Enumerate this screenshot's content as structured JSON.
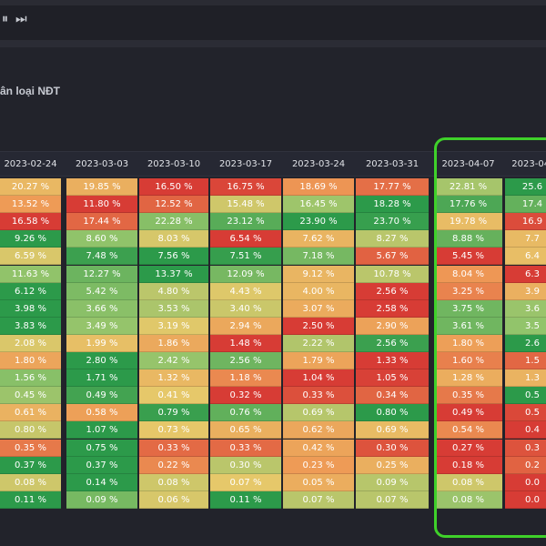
{
  "toolbar": {
    "controls": [
      {
        "icon": "pause-icon",
        "glyph": "⏸",
        "name": "pause-button"
      },
      {
        "icon": "skip-forward-icon",
        "glyph": "⏭",
        "name": "next-button"
      }
    ]
  },
  "section": {
    "title": "ân loại NĐT"
  },
  "table": {
    "columns": [
      "2023-02-24",
      "2023-03-03",
      "2023-03-10",
      "2023-03-17",
      "2023-03-24",
      "2023-03-31",
      "2023-04-07",
      "2023-04-"
    ],
    "rows": [
      [
        "20.27 %",
        "19.85 %",
        "16.50 %",
        "16.75 %",
        "18.69 %",
        "17.77 %",
        "22.81 %",
        "25.6"
      ],
      [
        "13.52 %",
        "11.80 %",
        "12.52 %",
        "15.48 %",
        "16.45 %",
        "18.28 %",
        "17.76 %",
        "17.4"
      ],
      [
        "16.58 %",
        "17.44 %",
        "22.28 %",
        "23.12 %",
        "23.90 %",
        "23.70 %",
        "19.78 %",
        "16.9"
      ],
      [
        "9.26 %",
        "8.60 %",
        "8.03 %",
        "6.54 %",
        "7.62 %",
        "8.27 %",
        "8.88 %",
        "7.7"
      ],
      [
        "6.59 %",
        "7.48 %",
        "7.56 %",
        "7.51 %",
        "7.18 %",
        "5.67 %",
        "5.45 %",
        "6.4"
      ],
      [
        "11.63 %",
        "12.27 %",
        "13.37 %",
        "12.09 %",
        "9.12 %",
        "10.78 %",
        "8.04 %",
        "6.3"
      ],
      [
        "6.12 %",
        "5.42 %",
        "4.80 %",
        "4.43 %",
        "4.00 %",
        "2.56 %",
        "3.25 %",
        "3.9"
      ],
      [
        "3.98 %",
        "3.66 %",
        "3.53 %",
        "3.40 %",
        "3.07 %",
        "2.58 %",
        "3.75 %",
        "3.6"
      ],
      [
        "3.83 %",
        "3.49 %",
        "3.19 %",
        "2.94 %",
        "2.50 %",
        "2.90 %",
        "3.61 %",
        "3.5"
      ],
      [
        "2.08 %",
        "1.99 %",
        "1.86 %",
        "1.48 %",
        "2.22 %",
        "2.56 %",
        "1.80 %",
        "2.6"
      ],
      [
        "1.80 %",
        "2.80 %",
        "2.42 %",
        "2.56 %",
        "1.79 %",
        "1.33 %",
        "1.60 %",
        "1.5"
      ],
      [
        "1.56 %",
        "1.71 %",
        "1.32 %",
        "1.18 %",
        "1.04 %",
        "1.05 %",
        "1.28 %",
        "1.3"
      ],
      [
        "0.45 %",
        "0.49 %",
        "0.41 %",
        "0.32 %",
        "0.33 %",
        "0.34 %",
        "0.35 %",
        "0.5"
      ],
      [
        "0.61 %",
        "0.58 %",
        "0.79 %",
        "0.76 %",
        "0.69 %",
        "0.80 %",
        "0.49 %",
        "0.5"
      ],
      [
        "0.80 %",
        "1.07 %",
        "0.73 %",
        "0.65 %",
        "0.62 %",
        "0.69 %",
        "0.54 %",
        "0.4"
      ],
      [
        "0.35 %",
        "0.75 %",
        "0.33 %",
        "0.33 %",
        "0.42 %",
        "0.30 %",
        "0.27 %",
        "0.3"
      ],
      [
        "0.37 %",
        "0.37 %",
        "0.22 %",
        "0.30 %",
        "0.23 %",
        "0.25 %",
        "0.18 %",
        "0.2"
      ],
      [
        "0.08 %",
        "0.14 %",
        "0.08 %",
        "0.07 %",
        "0.05 %",
        "0.09 %",
        "0.08 %",
        "0.0"
      ],
      [
        "0.11 %",
        "0.09 %",
        "0.06 %",
        "0.11 %",
        "0.07 %",
        "0.07 %",
        "0.08 %",
        "0.0"
      ]
    ]
  },
  "colors": {
    "red": "#d73c35",
    "orange": "#ee9855",
    "yellow": "#e6c86a",
    "light_green": "#93c46b",
    "green": "#2c9a4a",
    "highlight": "#3fd12a"
  }
}
